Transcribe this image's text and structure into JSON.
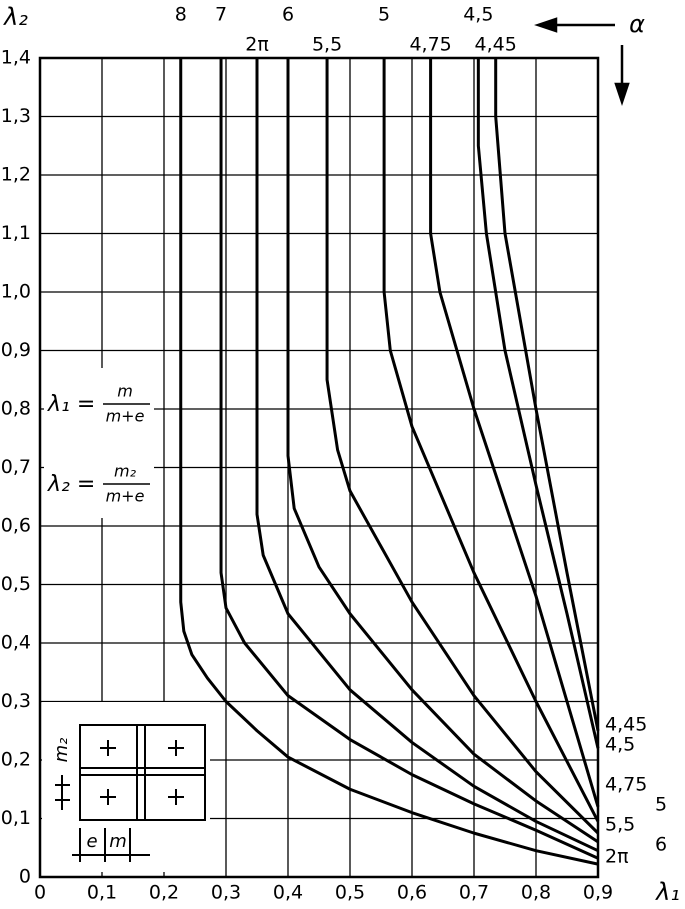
{
  "chart_data": {
    "type": "line",
    "x_label": "λ₁",
    "y_label": "λ₂",
    "direction_label": "α",
    "xlim": [
      0,
      0.9
    ],
    "ylim": [
      0,
      1.4
    ],
    "xticks": [
      0,
      {
        "value": 0.1,
        "label": "0,1"
      },
      {
        "value": 0.2,
        "label": "0,2"
      },
      {
        "value": 0.3,
        "label": "0,3"
      },
      {
        "value": 0.4,
        "label": "0,4"
      },
      {
        "value": 0.5,
        "label": "0,5"
      },
      {
        "value": 0.6,
        "label": "0,6"
      },
      {
        "value": 0.7,
        "label": "0,7"
      },
      {
        "value": 0.8,
        "label": "0,8"
      },
      {
        "value": 0.9,
        "label": "0,9"
      }
    ],
    "yticks": [
      0,
      {
        "value": 0.1,
        "label": "0,1"
      },
      {
        "value": 0.2,
        "label": "0,2"
      },
      {
        "value": 0.3,
        "label": "0,3"
      },
      {
        "value": 0.4,
        "label": "0,4"
      },
      {
        "value": 0.5,
        "label": "0,5"
      },
      {
        "value": 0.6,
        "label": "0,6"
      },
      {
        "value": 0.7,
        "label": "0,7"
      },
      {
        "value": 0.8,
        "label": "0,8"
      },
      {
        "value": 0.9,
        "label": "0,9"
      },
      {
        "value": 1.0,
        "label": "1,0"
      },
      {
        "value": 1.1,
        "label": "1,1"
      },
      {
        "value": 1.2,
        "label": "1,2"
      },
      {
        "value": 1.3,
        "label": "1,3"
      },
      {
        "value": 1.4,
        "label": "1,4"
      }
    ],
    "grid": true,
    "color": "#000000",
    "series": [
      {
        "name": "8",
        "x": [
          0.227,
          0.227,
          0.232,
          0.245,
          0.27,
          0.3,
          0.35,
          0.4,
          0.5,
          0.6,
          0.7,
          0.8,
          0.9
        ],
        "values": [
          1.4,
          0.47,
          0.42,
          0.38,
          0.34,
          0.3,
          0.25,
          0.205,
          0.15,
          0.11,
          0.075,
          0.045,
          0.022
        ]
      },
      {
        "name": "7",
        "x": [
          0.292,
          0.292,
          0.3,
          0.33,
          0.4,
          0.5,
          0.6,
          0.7,
          0.8,
          0.9
        ],
        "values": [
          1.4,
          0.52,
          0.46,
          0.4,
          0.31,
          0.235,
          0.175,
          0.125,
          0.08,
          0.032
        ]
      },
      {
        "name": "2π",
        "x": [
          0.35,
          0.35,
          0.36,
          0.4,
          0.5,
          0.6,
          0.7,
          0.8,
          0.9
        ],
        "values": [
          1.4,
          0.62,
          0.55,
          0.45,
          0.32,
          0.23,
          0.155,
          0.095,
          0.045
        ]
      },
      {
        "name": "6",
        "x": [
          0.4,
          0.4,
          0.41,
          0.45,
          0.5,
          0.6,
          0.7,
          0.8,
          0.9
        ],
        "values": [
          1.4,
          0.72,
          0.63,
          0.53,
          0.45,
          0.32,
          0.21,
          0.13,
          0.06
        ]
      },
      {
        "name": "5,5",
        "x": [
          0.463,
          0.463,
          0.48,
          0.5,
          0.6,
          0.7,
          0.8,
          0.9
        ],
        "values": [
          1.4,
          0.85,
          0.73,
          0.66,
          0.47,
          0.31,
          0.18,
          0.075
        ]
      },
      {
        "name": "5",
        "x": [
          0.555,
          0.555,
          0.565,
          0.6,
          0.7,
          0.8,
          0.9
        ],
        "values": [
          1.4,
          1.0,
          0.9,
          0.77,
          0.52,
          0.3,
          0.095
        ]
      },
      {
        "name": "4,75",
        "x": [
          0.63,
          0.63,
          0.645,
          0.7,
          0.8,
          0.9
        ],
        "values": [
          1.4,
          1.1,
          1.0,
          0.8,
          0.48,
          0.12
        ]
      },
      {
        "name": "4,5",
        "x": [
          0.707,
          0.707,
          0.72,
          0.75,
          0.8,
          0.85,
          0.9
        ],
        "values": [
          1.4,
          1.25,
          1.1,
          0.9,
          0.67,
          0.45,
          0.22
        ]
      },
      {
        "name": "4,45",
        "x": [
          0.735,
          0.735,
          0.75,
          0.8,
          0.85,
          0.9
        ],
        "values": [
          1.4,
          1.3,
          1.1,
          0.8,
          0.52,
          0.25
        ]
      }
    ],
    "end_labels": [
      "4,45",
      "4,5",
      "4,75",
      "5",
      "5,5",
      "6",
      "2π"
    ],
    "formulas": [
      {
        "lhs": "λ₁ =",
        "numerator": "m",
        "denominator": "m+e"
      },
      {
        "lhs": "λ₂ =",
        "numerator": "m₂",
        "denominator": "m+e"
      }
    ],
    "inset_labels": {
      "vertical": "m₂",
      "left": "e",
      "right": "m"
    }
  }
}
